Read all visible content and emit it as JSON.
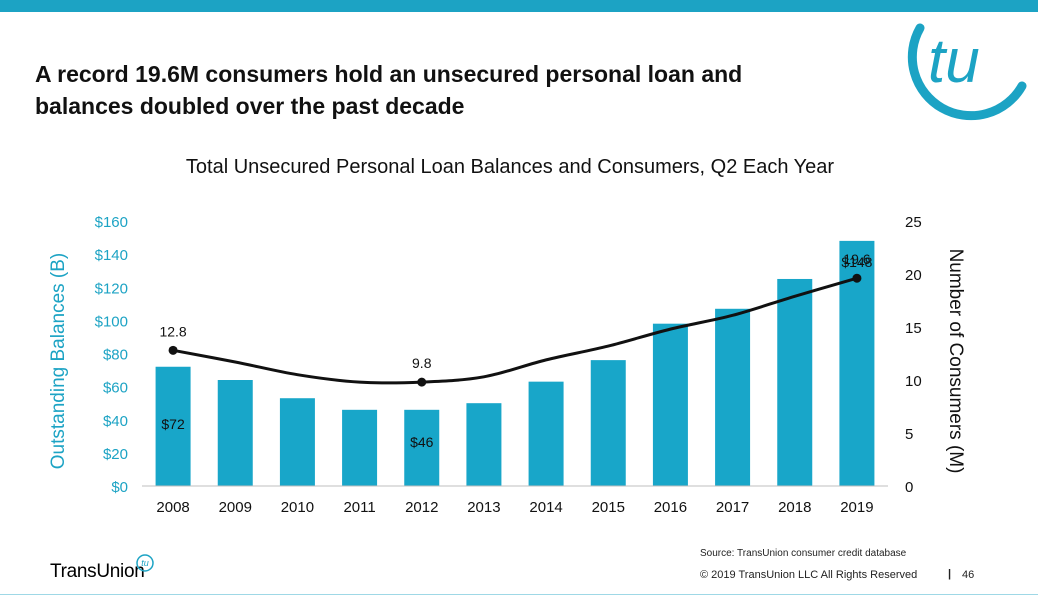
{
  "slide": {
    "title": "A record 19.6M consumers hold an unsecured personal loan and\nbalances doubled over the past decade",
    "logo_text": "tu",
    "brand_name": "TransUnion",
    "brand_mark": "tu",
    "source": "Source: TransUnion consumer credit database",
    "copyright": "© 2019 TransUnion LLC All Rights Reserved",
    "page_separator": "|",
    "page_number": "46"
  },
  "colors": {
    "accent": "#1ca3c4",
    "bar": "#18a6c9",
    "line": "#111111"
  },
  "chart_data": {
    "type": "bar+line",
    "title": "Total Unsecured Personal Loan Balances and Consumers, Q2 Each Year",
    "categories": [
      "2008",
      "2009",
      "2010",
      "2011",
      "2012",
      "2013",
      "2014",
      "2015",
      "2016",
      "2017",
      "2018",
      "2019"
    ],
    "series": [
      {
        "name": "Outstanding Balances (B)",
        "type": "bar",
        "axis": "left",
        "values": [
          72,
          64,
          53,
          46,
          46,
          50,
          63,
          76,
          98,
          107,
          125,
          148
        ]
      },
      {
        "name": "Number of Consumers (M)",
        "type": "line",
        "axis": "right",
        "values": [
          12.8,
          11.7,
          10.5,
          9.8,
          9.8,
          10.3,
          11.9,
          13.2,
          14.8,
          16.1,
          17.9,
          19.6
        ]
      }
    ],
    "ylabel_left": "Outstanding Balances (B)",
    "ylabel_right": "Number of Consumers (M)",
    "ylim_left": [
      0,
      160
    ],
    "ylim_right": [
      0,
      25
    ],
    "yticks_left": [
      "$0",
      "$20",
      "$40",
      "$60",
      "$80",
      "$100",
      "$120",
      "$140",
      "$160"
    ],
    "yticks_right": [
      "0",
      "5",
      "10",
      "15",
      "20",
      "25"
    ],
    "bar_labels": [
      {
        "index": 0,
        "text": "$72"
      },
      {
        "index": 4,
        "text": "$46"
      },
      {
        "index": 11,
        "text": "$148"
      }
    ],
    "line_labels": [
      {
        "index": 0,
        "text": "12.8"
      },
      {
        "index": 4,
        "text": "9.8"
      },
      {
        "index": 11,
        "text": "19.6"
      }
    ],
    "marker_indices": [
      0,
      4,
      11
    ],
    "grid": false,
    "legend": "none"
  }
}
